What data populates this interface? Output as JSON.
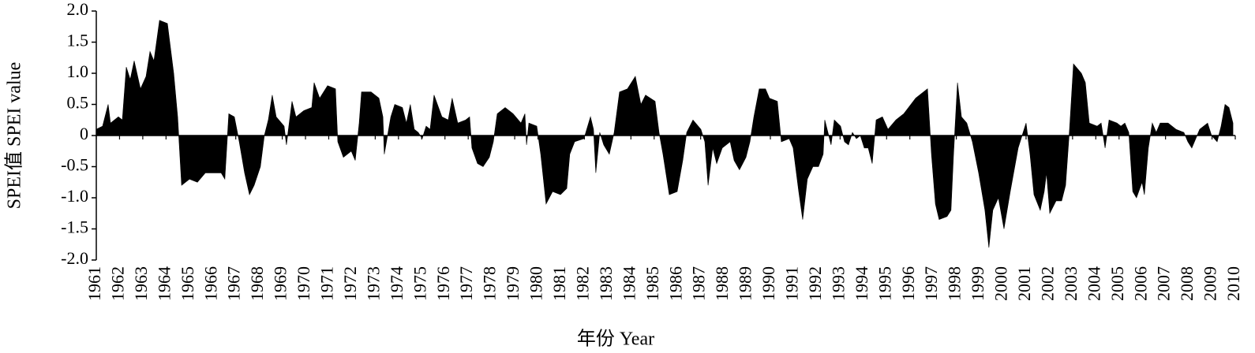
{
  "chart_data": {
    "type": "area",
    "x_label": "年份 Year",
    "y_label": "SPEI值 SPEI value",
    "color": "#000000",
    "xlim": [
      1961,
      2010
    ],
    "xticks": [
      1961,
      1962,
      1963,
      1964,
      1965,
      1966,
      1967,
      1968,
      1969,
      1970,
      1971,
      1972,
      1973,
      1974,
      1975,
      1976,
      1977,
      1978,
      1979,
      1980,
      1981,
      1982,
      1983,
      1984,
      1985,
      1986,
      1987,
      1988,
      1989,
      1990,
      1991,
      1992,
      1993,
      1994,
      1995,
      1996,
      1997,
      1998,
      1999,
      2000,
      2001,
      2002,
      2003,
      2004,
      2005,
      2006,
      2007,
      2008,
      2009,
      2010
    ],
    "ylim": [
      -2,
      2
    ],
    "yticks": [
      {
        "value": -2,
        "label": "-2.0"
      },
      {
        "value": -1.5,
        "label": "-1.5"
      },
      {
        "value": -1,
        "label": "-1.0"
      },
      {
        "value": -0.5,
        "label": "-0.5"
      },
      0,
      {
        "value": 0.5,
        "label": "0.5"
      },
      {
        "value": 1,
        "label": "1.0"
      },
      {
        "value": 1.5,
        "label": "1.5"
      },
      {
        "value": 2,
        "label": "2.0"
      }
    ],
    "x": [
      1961.0,
      1961.27,
      1961.51,
      1961.61,
      1961.95,
      1962.12,
      1962.29,
      1962.46,
      1962.63,
      1962.9,
      1963.14,
      1963.31,
      1963.48,
      1963.72,
      1964.06,
      1964.33,
      1964.5,
      1964.67,
      1965.01,
      1965.35,
      1965.69,
      1966.03,
      1966.37,
      1966.53,
      1966.7,
      1966.94,
      1967.15,
      1967.38,
      1967.59,
      1967.79,
      1968.06,
      1968.23,
      1968.4,
      1968.57,
      1968.74,
      1969.08,
      1969.18,
      1969.42,
      1969.59,
      1969.93,
      1970.27,
      1970.37,
      1970.61,
      1970.95,
      1971.29,
      1971.39,
      1971.63,
      1971.97,
      1972.14,
      1972.31,
      1972.41,
      1972.82,
      1973.16,
      1973.33,
      1973.39,
      1973.67,
      1973.84,
      1974.17,
      1974.34,
      1974.51,
      1974.68,
      1974.85,
      1975.02,
      1975.19,
      1975.36,
      1975.53,
      1975.87,
      1976.14,
      1976.31,
      1976.55,
      1976.89,
      1977.06,
      1977.16,
      1977.4,
      1977.64,
      1977.91,
      1978.08,
      1978.25,
      1978.59,
      1978.93,
      1979.27,
      1979.44,
      1979.51,
      1979.61,
      1979.95,
      1980.12,
      1980.35,
      1980.63,
      1980.97,
      1981.24,
      1981.37,
      1981.58,
      1981.98,
      1982.26,
      1982.39,
      1982.49,
      1982.66,
      1982.83,
      1983.07,
      1983.28,
      1983.51,
      1983.85,
      1984.19,
      1984.43,
      1984.63,
      1985.04,
      1985.21,
      1985.38,
      1985.65,
      1985.99,
      1986.23,
      1986.4,
      1986.67,
      1987.01,
      1987.18,
      1987.32,
      1987.52,
      1987.69,
      1987.93,
      1988.27,
      1988.44,
      1988.67,
      1988.95,
      1989.12,
      1989.29,
      1989.52,
      1989.79,
      1989.96,
      1990.3,
      1990.47,
      1990.81,
      1990.98,
      1991.22,
      1991.39,
      1991.59,
      1991.83,
      1992.07,
      1992.27,
      1992.34,
      1992.51,
      1992.61,
      1992.75,
      1993.02,
      1993.19,
      1993.36,
      1993.53,
      1993.7,
      1993.87,
      1994.04,
      1994.21,
      1994.38,
      1994.55,
      1994.82,
      1995.06,
      1995.4,
      1995.74,
      1996.25,
      1996.76,
      1996.93,
      1997.1,
      1997.26,
      1997.6,
      1997.77,
      1997.88,
      1998.05,
      1998.22,
      1998.45,
      1998.69,
      1998.96,
      1999.23,
      1999.4,
      1999.57,
      1999.81,
      2000.05,
      2000.32,
      2000.66,
      2001.0,
      2001.17,
      2001.34,
      2001.61,
      2001.78,
      2001.88,
      2002.02,
      2002.29,
      2002.53,
      2002.7,
      2002.87,
      2003.04,
      2003.38,
      2003.55,
      2003.72,
      2004.06,
      2004.23,
      2004.4,
      2004.57,
      2004.91,
      2005.08,
      2005.25,
      2005.42,
      2005.59,
      2005.75,
      2005.99,
      2006.09,
      2006.26,
      2006.43,
      2006.6,
      2006.77,
      2007.11,
      2007.45,
      2007.79,
      2007.96,
      2008.13,
      2008.47,
      2008.81,
      2008.98,
      2009.22,
      2009.39,
      2009.56,
      2009.73,
      2009.9
    ],
    "values": [
      0.1,
      0.15,
      0.5,
      0.2,
      0.3,
      0.25,
      1.1,
      0.9,
      1.2,
      0.75,
      0.95,
      1.35,
      1.2,
      1.85,
      1.8,
      1.0,
      0.3,
      -0.8,
      -0.7,
      -0.75,
      -0.6,
      -0.6,
      -0.6,
      -0.7,
      0.35,
      0.3,
      -0.1,
      -0.6,
      -0.95,
      -0.8,
      -0.5,
      0,
      0.25,
      0.65,
      0.3,
      0.15,
      -0.15,
      0.55,
      0.3,
      0.4,
      0.45,
      0.85,
      0.6,
      0.8,
      0.75,
      -0.1,
      -0.35,
      -0.25,
      -0.4,
      0.2,
      0.7,
      0.7,
      0.6,
      0.3,
      -0.3,
      0.3,
      0.5,
      0.45,
      0.2,
      0.5,
      0.1,
      0.05,
      -0.05,
      0.15,
      0.1,
      0.65,
      0.3,
      0.25,
      0.6,
      0.2,
      0.25,
      0.3,
      -0.2,
      -0.45,
      -0.5,
      -0.35,
      -0.1,
      0.35,
      0.45,
      0.35,
      0.2,
      0.35,
      -0.15,
      0.2,
      0.15,
      -0.3,
      -1.1,
      -0.9,
      -0.95,
      -0.85,
      -0.3,
      -0.1,
      -0.05,
      0.3,
      0.1,
      -0.6,
      0.05,
      -0.15,
      -0.3,
      0.05,
      0.7,
      0.75,
      0.95,
      0.5,
      0.65,
      0.55,
      0.05,
      -0.3,
      -0.95,
      -0.9,
      -0.4,
      0.05,
      0.25,
      0.1,
      -0.1,
      -0.8,
      -0.2,
      -0.45,
      -0.2,
      -0.1,
      -0.4,
      -0.55,
      -0.35,
      -0.1,
      0.3,
      0.75,
      0.75,
      0.6,
      0.55,
      -0.1,
      -0.05,
      -0.2,
      -0.9,
      -1.35,
      -0.7,
      -0.5,
      -0.5,
      -0.3,
      0.25,
      0,
      -0.15,
      0.25,
      0.15,
      -0.1,
      -0.15,
      0.05,
      -0.05,
      0,
      -0.2,
      -0.2,
      -0.45,
      0.25,
      0.3,
      0.1,
      0.25,
      0.35,
      0.6,
      0.75,
      -0.3,
      -1.1,
      -1.35,
      -1.3,
      -1.2,
      -0.3,
      0.85,
      0.3,
      0.2,
      -0.1,
      -0.6,
      -1.2,
      -1.8,
      -1.2,
      -1,
      -1.5,
      -0.9,
      -0.2,
      0.2,
      -0.3,
      -0.95,
      -1.2,
      -0.9,
      -0.6,
      -1.25,
      -1.05,
      -1.05,
      -0.8,
      0.1,
      1.15,
      1.0,
      0.85,
      0.2,
      0.15,
      0.2,
      -0.2,
      0.25,
      0.2,
      0.15,
      0.2,
      0.05,
      -0.9,
      -1,
      -0.75,
      -0.95,
      -0.2,
      0.2,
      0.05,
      0.2,
      0.2,
      0.1,
      0.05,
      -0.1,
      -0.2,
      0.1,
      0.2,
      0,
      -0.1,
      0.15,
      0.5,
      0.45,
      0.2
    ]
  }
}
